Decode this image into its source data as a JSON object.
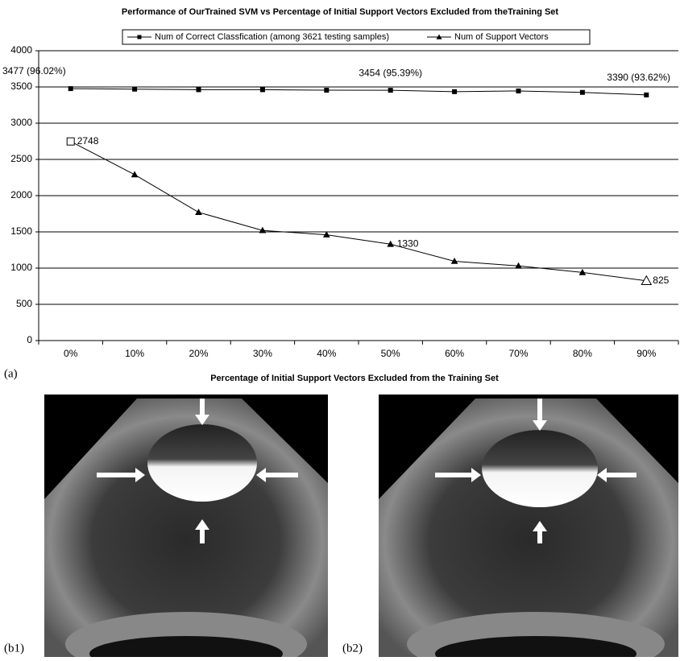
{
  "chart_data": {
    "type": "line",
    "title": "Performance of OurTrained SVM vs Percentage of Initial Support Vectors Excluded from theTraining Set",
    "x_label": "Percentage of Initial Support Vectors Excluded from the Training Set",
    "categories": [
      "0%",
      "10%",
      "20%",
      "30%",
      "40%",
      "50%",
      "60%",
      "70%",
      "80%",
      "90%"
    ],
    "series": [
      {
        "name": "Num of Correct Classfication (among 3621 testing samples)",
        "color": "#000000",
        "marker": "square",
        "values": [
          3477,
          3470,
          3462,
          3462,
          3455,
          3454,
          3435,
          3445,
          3425,
          3390
        ],
        "value_labels": [
          "3477 (96.02%)",
          null,
          null,
          null,
          null,
          "3454 (95.39%)",
          null,
          null,
          null,
          "3390 (93.62%)"
        ]
      },
      {
        "name": "Num of Support Vectors",
        "color": "#000000",
        "marker": "triangle",
        "values": [
          2748,
          2290,
          1770,
          1520,
          1460,
          1330,
          1095,
          1030,
          940,
          825
        ],
        "value_labels": [
          "2748",
          null,
          null,
          null,
          null,
          "1330",
          null,
          null,
          null,
          "825"
        ]
      }
    ],
    "ylim": [
      0,
      4000
    ],
    "yticks": [
      0,
      500,
      1000,
      1500,
      2000,
      2500,
      3000,
      3500,
      4000
    ],
    "grid": true
  },
  "figure": {
    "panel_a": "(a)",
    "panel_b1": "(b1)",
    "panel_b2": "(b2)"
  }
}
